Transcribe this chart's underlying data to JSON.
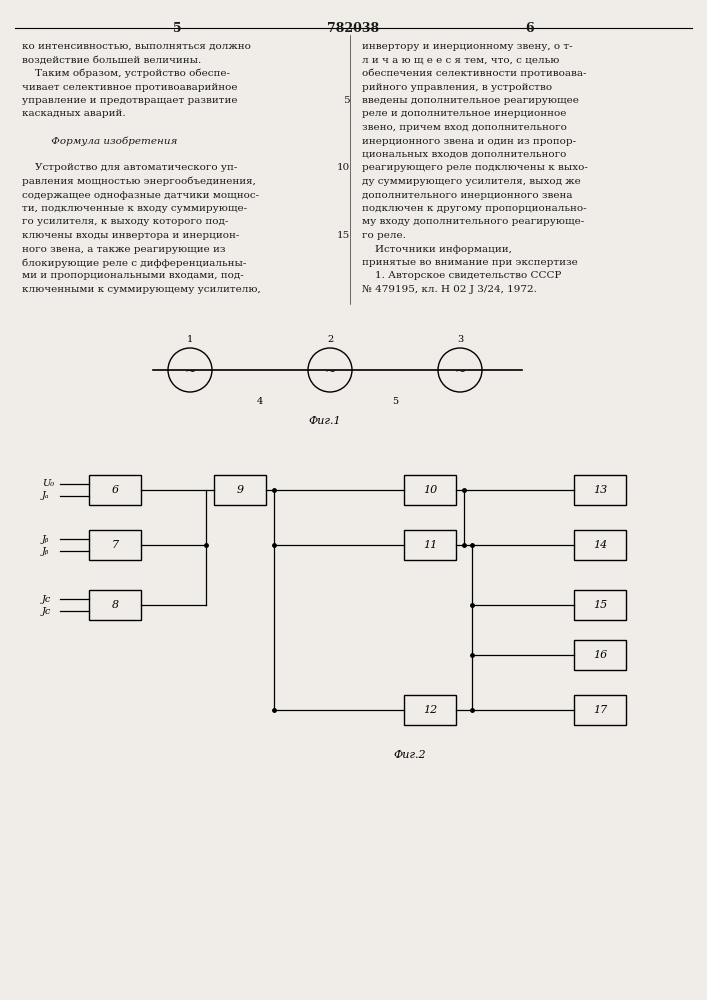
{
  "page_num_left": "5",
  "page_num_center": "782038",
  "page_num_right": "6",
  "bg_color": "#f0ede8",
  "text_color": "#1a1a1a",
  "left_col_text": [
    "ко интенсивностью, выполняться должно",
    "воздействие большей величины.",
    "    Таким образом, устройство обеспе-",
    "чивает селективное противоаварийное",
    "управление и предотвращает развитие",
    "каскадных аварий.",
    "",
    "         Формула изобретения",
    "",
    "    Устройство для автоматического уп-",
    "равления мощностью энергообъединения,",
    "содержащее однофазные датчики мощнос-",
    "ти, подключенные к входу суммирующе-",
    "го усилителя, к выходу которого под-",
    "ключены входы инвертора и инерцион-",
    "ного звена, а также реагирующие из",
    "блокирующие реле с дифференциальны-",
    "ми и пропорциональными входами, под-",
    "ключенными к суммирующему усилителю,"
  ],
  "right_col_text": [
    "инвертору и инерционному звену, о т-",
    "л и ч а ю щ е е с я тем, что, с целью",
    "обеспечения селективности противоава-",
    "рийного управления, в устройство",
    "введены дополнительное реагирующее",
    "реле и дополнительное инерционное",
    "звено, причем вход дополнительного",
    "инерционного звена и один из пропор-",
    "циональных входов дополнительного",
    "реагирующего реле подключены к выхо-",
    "ду суммирующего усилителя, выход же",
    "дополнительного инерционного звена",
    "подключен к другому пропорционально-",
    "му входу дополнительного реагирующе-",
    "го реле.",
    "    Источники информации,",
    "принятые во внимание при экспертизе",
    "    1. Авторское свидетельство СССР",
    "№ 479195, кл. Н 02 J 3/24, 1972."
  ],
  "line_number_rows": {
    "4": "5",
    "9": "10",
    "14": "15"
  },
  "fig1_caption": "Фиг.1",
  "fig2_caption": "Фиг.2"
}
